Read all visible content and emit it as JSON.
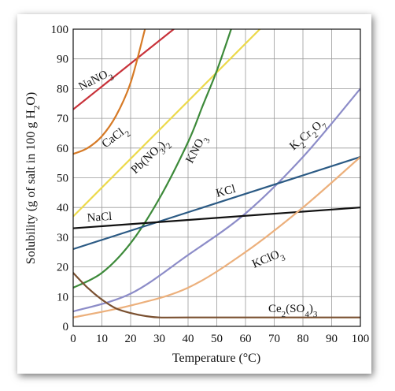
{
  "chart_data": {
    "type": "line",
    "title": "",
    "xlabel": "Temperature (°C)",
    "ylabel": "Solubility (g of salt in 100 g H2O)",
    "xlim": [
      0,
      100
    ],
    "ylim": [
      0,
      100
    ],
    "xticks": [
      0,
      10,
      20,
      30,
      40,
      50,
      60,
      70,
      80,
      90,
      100
    ],
    "yticks": [
      0,
      10,
      20,
      30,
      40,
      50,
      60,
      70,
      80,
      90,
      100
    ],
    "grid": true,
    "legend": "none",
    "series": [
      {
        "name": "NaNO3",
        "color": "#c8323a",
        "x": [
          0,
          35
        ],
        "y": [
          73,
          100
        ]
      },
      {
        "name": "CaCl2",
        "color": "#d67a26",
        "x": [
          0,
          5,
          10,
          15,
          20,
          25
        ],
        "y": [
          58,
          60,
          64,
          71,
          82,
          100
        ]
      },
      {
        "name": "Pb(NO3)2",
        "color": "#ecd94a",
        "x": [
          0,
          65
        ],
        "y": [
          37,
          100
        ]
      },
      {
        "name": "KNO3",
        "color": "#3d8a3a",
        "x": [
          0,
          10,
          20,
          30,
          40,
          45,
          50,
          55
        ],
        "y": [
          13,
          18,
          28,
          43,
          62,
          74,
          86,
          100
        ]
      },
      {
        "name": "K2Cr2O7",
        "color": "#8c8cc8",
        "x": [
          0,
          20,
          40,
          60,
          80,
          100
        ],
        "y": [
          5,
          11,
          24,
          38,
          57,
          80
        ]
      },
      {
        "name": "KCl",
        "color": "#2b5a84",
        "x": [
          0,
          100
        ],
        "y": [
          26,
          57
        ]
      },
      {
        "name": "NaCl",
        "color": "#111111",
        "x": [
          0,
          100
        ],
        "y": [
          33,
          40
        ]
      },
      {
        "name": "KClO3",
        "color": "#ecb07c",
        "x": [
          0,
          20,
          40,
          60,
          80,
          100
        ],
        "y": [
          3,
          7,
          13,
          25,
          40,
          57
        ]
      },
      {
        "name": "Ce2(SO4)3",
        "color": "#7a5030",
        "x": [
          0,
          5,
          10,
          15,
          20,
          25,
          30,
          40,
          100
        ],
        "y": [
          18,
          13,
          9,
          6,
          4.5,
          3.5,
          3,
          3,
          3
        ]
      }
    ],
    "annotations": [
      {
        "series": "NaNO3",
        "text": "NaNO3"
      },
      {
        "series": "CaCl2",
        "text": "CaCl2"
      },
      {
        "series": "Pb(NO3)2",
        "text": "Pb(NO3)2"
      },
      {
        "series": "KNO3",
        "text": "KNO3"
      },
      {
        "series": "K2Cr2O7",
        "text": "K2Cr2O7"
      },
      {
        "series": "KCl",
        "text": "KCl"
      },
      {
        "series": "NaCl",
        "text": "NaCl"
      },
      {
        "series": "KClO3",
        "text": "KClO3"
      },
      {
        "series": "Ce2(SO4)3",
        "text": "Ce2(SO4)3"
      }
    ]
  }
}
